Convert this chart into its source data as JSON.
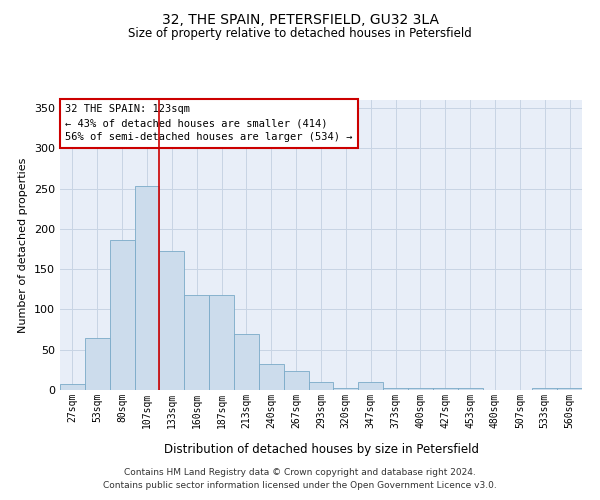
{
  "title": "32, THE SPAIN, PETERSFIELD, GU32 3LA",
  "subtitle": "Size of property relative to detached houses in Petersfield",
  "xlabel": "Distribution of detached houses by size in Petersfield",
  "ylabel": "Number of detached properties",
  "bar_color": "#ccdcec",
  "bar_edge_color": "#7aaac8",
  "grid_color": "#c8d4e4",
  "background_color": "#e8eef8",
  "categories": [
    "27sqm",
    "53sqm",
    "80sqm",
    "107sqm",
    "133sqm",
    "160sqm",
    "187sqm",
    "213sqm",
    "240sqm",
    "267sqm",
    "293sqm",
    "320sqm",
    "347sqm",
    "373sqm",
    "400sqm",
    "427sqm",
    "453sqm",
    "480sqm",
    "507sqm",
    "533sqm",
    "560sqm"
  ],
  "values": [
    8,
    65,
    186,
    253,
    172,
    118,
    118,
    70,
    32,
    23,
    10,
    3,
    10,
    3,
    3,
    3,
    2,
    0,
    0,
    2,
    2
  ],
  "property_label": "32 THE SPAIN: 123sqm",
  "annotation_line1": "← 43% of detached houses are smaller (414)",
  "annotation_line2": "56% of semi-detached houses are larger (534) →",
  "annotation_box_color": "#ffffff",
  "annotation_border_color": "#cc0000",
  "vline_color": "#cc0000",
  "ylim": [
    0,
    360
  ],
  "yticks": [
    0,
    50,
    100,
    150,
    200,
    250,
    300,
    350
  ],
  "footer_line1": "Contains HM Land Registry data © Crown copyright and database right 2024.",
  "footer_line2": "Contains public sector information licensed under the Open Government Licence v3.0."
}
